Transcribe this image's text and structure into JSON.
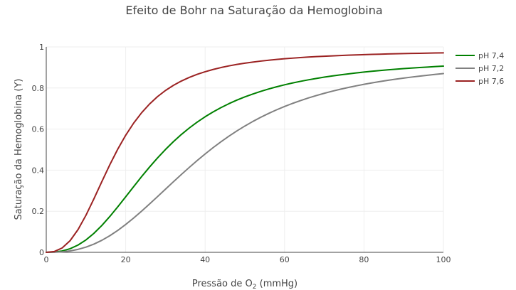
{
  "chart_data": {
    "type": "line",
    "title": "Efeito de Bohr na Saturação da Hemoglobina",
    "xlabel": {
      "prefix": "Pressão de O",
      "subscript": "2",
      "suffix": " (mmHg)"
    },
    "ylabel": "Saturação da Hemoglobina (Y)",
    "xlim": [
      0,
      100
    ],
    "ylim": [
      0,
      1
    ],
    "x_ticks": [
      0,
      20,
      40,
      60,
      80,
      100
    ],
    "x_tick_labels": [
      "0",
      "20",
      "40",
      "60",
      "80",
      "100"
    ],
    "y_ticks": [
      0,
      0.2,
      0.4,
      0.6,
      0.8,
      1
    ],
    "y_tick_labels": [
      "0",
      "0.2",
      "0.4",
      "0.6",
      "0.8",
      "1"
    ],
    "grid": true,
    "legend_position": "top-right",
    "x": [
      0,
      2,
      4,
      6,
      8,
      10,
      12,
      14,
      16,
      18,
      20,
      22,
      24,
      26,
      28,
      30,
      32,
      34,
      36,
      38,
      40,
      42,
      44,
      46,
      48,
      50,
      52,
      54,
      56,
      58,
      60,
      62,
      64,
      66,
      68,
      70,
      72,
      74,
      76,
      78,
      80,
      82,
      84,
      86,
      88,
      90,
      92,
      94,
      96,
      98,
      100
    ],
    "series": [
      {
        "name": "pH 7,4",
        "color": "#008000",
        "values": [
          0.0,
          0.0012,
          0.0066,
          0.0176,
          0.0354,
          0.0604,
          0.0925,
          0.1309,
          0.1744,
          0.2215,
          0.2704,
          0.3198,
          0.3683,
          0.415,
          0.4592,
          0.5004,
          0.5385,
          0.5734,
          0.6051,
          0.6339,
          0.6599,
          0.6834,
          0.7046,
          0.7237,
          0.741,
          0.7566,
          0.7707,
          0.7836,
          0.7952,
          0.8058,
          0.8155,
          0.8243,
          0.8324,
          0.8398,
          0.8465,
          0.8528,
          0.8585,
          0.8638,
          0.8687,
          0.8732,
          0.8774,
          0.8813,
          0.8849,
          0.8883,
          0.8914,
          0.8943,
          0.8971,
          0.8996,
          0.902,
          0.9043,
          0.9064
        ]
      },
      {
        "name": "pH 7,2",
        "color": "#808080",
        "values": [
          0.0,
          0.0005,
          0.0026,
          0.007,
          0.0144,
          0.0253,
          0.04,
          0.0586,
          0.0809,
          0.1067,
          0.1356,
          0.167,
          0.2004,
          0.2353,
          0.271,
          0.3072,
          0.3432,
          0.3787,
          0.4133,
          0.4468,
          0.4789,
          0.5095,
          0.5384,
          0.5656,
          0.5911,
          0.6148,
          0.6369,
          0.6573,
          0.6763,
          0.6938,
          0.71,
          0.7249,
          0.7387,
          0.7515,
          0.7633,
          0.7742,
          0.7843,
          0.7936,
          0.8023,
          0.8103,
          0.8178,
          0.8248,
          0.8313,
          0.8373,
          0.843,
          0.8483,
          0.8532,
          0.8579,
          0.8622,
          0.8663,
          0.8702
        ]
      },
      {
        "name": "pH 7,6",
        "color": "#9b2222",
        "values": [
          0.0,
          0.0037,
          0.0212,
          0.0566,
          0.1107,
          0.1806,
          0.2607,
          0.3444,
          0.4262,
          0.5021,
          0.5699,
          0.6289,
          0.6793,
          0.7219,
          0.7577,
          0.7876,
          0.8127,
          0.8337,
          0.8515,
          0.8665,
          0.8792,
          0.8901,
          0.8995,
          0.9076,
          0.9147,
          0.9208,
          0.9262,
          0.931,
          0.9352,
          0.939,
          0.9423,
          0.9453,
          0.948,
          0.9505,
          0.9527,
          0.9547,
          0.9565,
          0.9582,
          0.9597,
          0.9611,
          0.9624,
          0.9636,
          0.9647,
          0.9657,
          0.9666,
          0.9675,
          0.9683,
          0.969,
          0.9697,
          0.9704,
          0.971
        ]
      }
    ]
  }
}
